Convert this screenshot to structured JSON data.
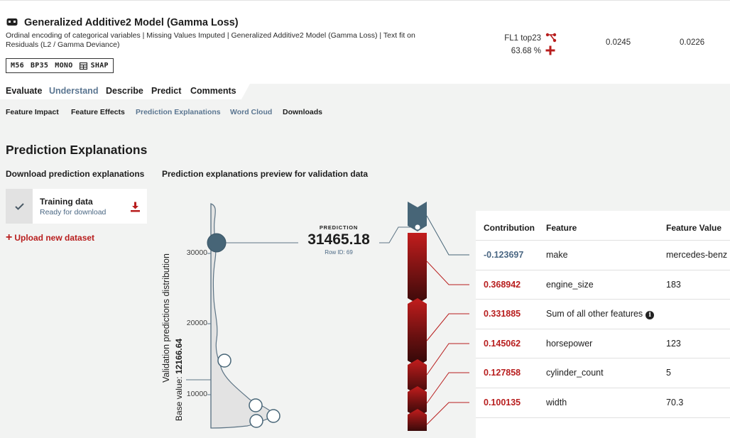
{
  "model": {
    "title": "Generalized Additive2 Model (Gamma Loss)",
    "description": "Ordinal encoding of categorical variables | Missing Values Imputed | Generalized Additive2 Model (Gamma Loss) | Text fit on Residuals (L2 / Gamma Deviance)",
    "badges": [
      "M56",
      "BP35",
      "MONO",
      "SHAP"
    ],
    "featurelist": "FL1 top23",
    "sample_pct": "63.68 %",
    "metrics": [
      "0.0245",
      "0.0226"
    ]
  },
  "tabs": [
    "Evaluate",
    "Understand",
    "Describe",
    "Predict",
    "Comments"
  ],
  "active_tab": "Understand",
  "subtabs": [
    "Feature Impact",
    "Feature Effects",
    "Prediction Explanations",
    "Word Cloud",
    "Downloads"
  ],
  "active_subtabs": [
    "Prediction Explanations",
    "Word Cloud"
  ],
  "page_title": "Prediction Explanations",
  "download_section": {
    "heading": "Download prediction explanations",
    "dataset_name": "Training data",
    "dataset_status": "Ready for download",
    "upload_label": "Upload new dataset"
  },
  "preview": {
    "heading": "Prediction explanations preview for validation data",
    "prediction_label": "PREDICTION",
    "prediction_value": "31465.18",
    "row_id": "Row ID: 69",
    "y_axis_title": "Validation predictions distribution",
    "base_value_label": "Base value:",
    "base_value": "12166.64",
    "y_ticks": [
      "30000",
      "20000",
      "10000"
    ]
  },
  "explanations_table": {
    "headers": [
      "Contribution",
      "Feature",
      "Feature Value"
    ],
    "rows": [
      {
        "contribution": "-0.123697",
        "feature": "make",
        "value": "mercedes-benz",
        "sign": "neg"
      },
      {
        "contribution": "0.368942",
        "feature": "engine_size",
        "value": "183",
        "sign": "pos"
      },
      {
        "contribution": "0.331885",
        "feature": "Sum of all other features",
        "value": "",
        "sign": "pos",
        "info": true
      },
      {
        "contribution": "0.145062",
        "feature": "horsepower",
        "value": "123",
        "sign": "pos"
      },
      {
        "contribution": "0.127858",
        "feature": "cylinder_count",
        "value": "5",
        "sign": "pos"
      },
      {
        "contribution": "0.100135",
        "feature": "width",
        "value": "70.3",
        "sign": "pos"
      }
    ]
  },
  "colors": {
    "accent_blue": "#5b7691",
    "positive_red": "#b81e1e",
    "negative_blue": "#4a6783"
  }
}
